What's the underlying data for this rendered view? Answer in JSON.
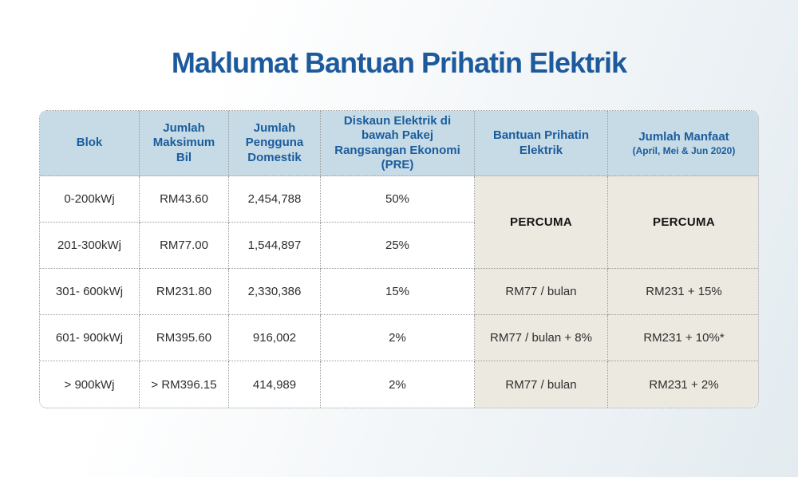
{
  "page": {
    "title": "Maklumat Bantuan Prihatin Elektrik"
  },
  "table": {
    "columns": [
      {
        "label": "Blok"
      },
      {
        "label": "Jumlah Maksimum Bil"
      },
      {
        "label": "Jumlah Pengguna Domestik"
      },
      {
        "label": "Diskaun Elektrik di bawah Pakej Rangsangan Ekonomi (PRE)"
      },
      {
        "label": "Bantuan Prihatin Elektrik"
      },
      {
        "label": "Jumlah Manfaat",
        "sublabel": "(April, Mei & Jun 2020)"
      }
    ],
    "merged": {
      "bantuan": "PERCUMA",
      "manfaat": "PERCUMA"
    },
    "rows": [
      {
        "blok": "0-200kWj",
        "max_bil": "RM43.60",
        "pengguna": "2,454,788",
        "diskaun": "50%"
      },
      {
        "blok": "201-300kWj",
        "max_bil": "RM77.00",
        "pengguna": "1,544,897",
        "diskaun": "25%"
      },
      {
        "blok": "301- 600kWj",
        "max_bil": "RM231.80",
        "pengguna": "2,330,386",
        "diskaun": "15%",
        "bantuan": "RM77 / bulan",
        "manfaat": "RM231 + 15%"
      },
      {
        "blok": "601- 900kWj",
        "max_bil": "RM395.60",
        "pengguna": "916,002",
        "diskaun": "2%",
        "bantuan": "RM77 / bulan + 8%",
        "manfaat": "RM231 + 10%*"
      },
      {
        "blok": "> 900kWj",
        "max_bil": "> RM396.15",
        "pengguna": "414,989",
        "diskaun": "2%",
        "bantuan": "RM77 / bulan",
        "manfaat": "RM231 + 2%"
      }
    ]
  },
  "colors": {
    "title-text": "#1d5a9c",
    "header-bg": "#c6dbe5",
    "header-text": "#1b5c9e",
    "beige-bg": "#ece9e0",
    "body-text": "#2e2e2e",
    "percuma-text": "#141414",
    "border": "#9b9b9b",
    "page-bg-start": "#ffffff",
    "page-bg-end": "#e3ebf0"
  }
}
